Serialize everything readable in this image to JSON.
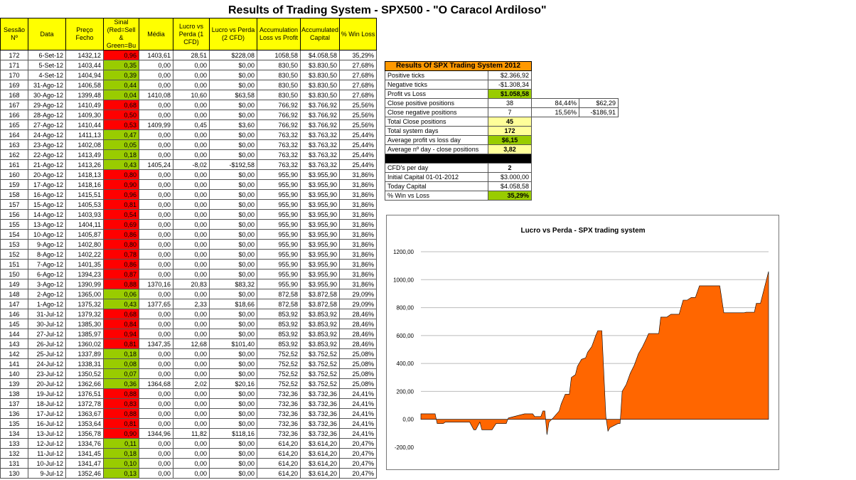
{
  "page": {
    "title": "Results of Trading System -  SPX500 - \"O Caracol Ardiloso\""
  },
  "table": {
    "headers": [
      "Sessão Nº",
      "Data",
      "Preço Fecho",
      "Sinal (Red=Sell & Green=Bu",
      "Média",
      "Lucro vs Perda (1 CFD)",
      "Lucro vs Perda (2 CFD)",
      "Accumulation Loss vs Profit",
      "Accumulated Capital",
      "% Win Loss"
    ],
    "rows": [
      {
        "n": "172",
        "date": "6-Set-12",
        "price": "1432,12",
        "signal": "0,96",
        "sc": "red",
        "media": "1403,61",
        "lp1": "28,51",
        "lp2": "$228,08",
        "acc": "1058,58",
        "cap": "$4.058,58",
        "win": "35,29%"
      },
      {
        "n": "171",
        "date": "5-Set-12",
        "price": "1403,44",
        "signal": "0,35",
        "sc": "green",
        "media": "0,00",
        "lp1": "0,00",
        "lp2": "$0,00",
        "acc": "830,50",
        "cap": "$3.830,50",
        "win": "27,68%"
      },
      {
        "n": "170",
        "date": "4-Set-12",
        "price": "1404,94",
        "signal": "0,39",
        "sc": "green",
        "media": "0,00",
        "lp1": "0,00",
        "lp2": "$0,00",
        "acc": "830,50",
        "cap": "$3.830,50",
        "win": "27,68%"
      },
      {
        "n": "169",
        "date": "31-Ago-12",
        "price": "1406,58",
        "signal": "0,44",
        "sc": "green",
        "media": "0,00",
        "lp1": "0,00",
        "lp2": "$0,00",
        "acc": "830,50",
        "cap": "$3.830,50",
        "win": "27,68%"
      },
      {
        "n": "168",
        "date": "30-Ago-12",
        "price": "1399,48",
        "signal": "0,04",
        "sc": "green",
        "media": "1410,08",
        "lp1": "10,60",
        "lp2": "$63,58",
        "acc": "830,50",
        "cap": "$3.830,50",
        "win": "27,68%"
      },
      {
        "n": "167",
        "date": "29-Ago-12",
        "price": "1410,49",
        "signal": "0,68",
        "sc": "red",
        "media": "0,00",
        "lp1": "0,00",
        "lp2": "$0,00",
        "acc": "766,92",
        "cap": "$3.766,92",
        "win": "25,56%"
      },
      {
        "n": "166",
        "date": "28-Ago-12",
        "price": "1409,30",
        "signal": "0,50",
        "sc": "red",
        "media": "0,00",
        "lp1": "0,00",
        "lp2": "$0,00",
        "acc": "766,92",
        "cap": "$3.766,92",
        "win": "25,56%"
      },
      {
        "n": "165",
        "date": "27-Ago-12",
        "price": "1410,44",
        "signal": "0,53",
        "sc": "red",
        "media": "1409,99",
        "lp1": "0,45",
        "lp2": "$3,60",
        "acc": "766,92",
        "cap": "$3.766,92",
        "win": "25,56%"
      },
      {
        "n": "164",
        "date": "24-Ago-12",
        "price": "1411,13",
        "signal": "0,47",
        "sc": "green",
        "media": "0,00",
        "lp1": "0,00",
        "lp2": "$0,00",
        "acc": "763,32",
        "cap": "$3.763,32",
        "win": "25,44%"
      },
      {
        "n": "163",
        "date": "23-Ago-12",
        "price": "1402,08",
        "signal": "0,05",
        "sc": "green",
        "media": "0,00",
        "lp1": "0,00",
        "lp2": "$0,00",
        "acc": "763,32",
        "cap": "$3.763,32",
        "win": "25,44%"
      },
      {
        "n": "162",
        "date": "22-Ago-12",
        "price": "1413,49",
        "signal": "0,18",
        "sc": "green",
        "media": "0,00",
        "lp1": "0,00",
        "lp2": "$0,00",
        "acc": "763,32",
        "cap": "$3.763,32",
        "win": "25,44%"
      },
      {
        "n": "161",
        "date": "21-Ago-12",
        "price": "1413,26",
        "signal": "0,43",
        "sc": "green",
        "media": "1405,24",
        "lp1": "-8,02",
        "lp2": "-$192,58",
        "acc": "763,32",
        "cap": "$3.763,32",
        "win": "25,44%"
      },
      {
        "n": "160",
        "date": "20-Ago-12",
        "price": "1418,13",
        "signal": "0,80",
        "sc": "red",
        "media": "0,00",
        "lp1": "0,00",
        "lp2": "$0,00",
        "acc": "955,90",
        "cap": "$3.955,90",
        "win": "31,86%"
      },
      {
        "n": "159",
        "date": "17-Ago-12",
        "price": "1418,16",
        "signal": "0,90",
        "sc": "red",
        "media": "0,00",
        "lp1": "0,00",
        "lp2": "$0,00",
        "acc": "955,90",
        "cap": "$3.955,90",
        "win": "31,86%"
      },
      {
        "n": "158",
        "date": "16-Ago-12",
        "price": "1415,51",
        "signal": "0,96",
        "sc": "red",
        "media": "0,00",
        "lp1": "0,00",
        "lp2": "$0,00",
        "acc": "955,90",
        "cap": "$3.955,90",
        "win": "31,86%"
      },
      {
        "n": "157",
        "date": "15-Ago-12",
        "price": "1405,53",
        "signal": "0,81",
        "sc": "red",
        "media": "0,00",
        "lp1": "0,00",
        "lp2": "$0,00",
        "acc": "955,90",
        "cap": "$3.955,90",
        "win": "31,86%"
      },
      {
        "n": "156",
        "date": "14-Ago-12",
        "price": "1403,93",
        "signal": "0,54",
        "sc": "red",
        "media": "0,00",
        "lp1": "0,00",
        "lp2": "$0,00",
        "acc": "955,90",
        "cap": "$3.955,90",
        "win": "31,86%"
      },
      {
        "n": "155",
        "date": "13-Ago-12",
        "price": "1404,11",
        "signal": "0,69",
        "sc": "red",
        "media": "0,00",
        "lp1": "0,00",
        "lp2": "$0,00",
        "acc": "955,90",
        "cap": "$3.955,90",
        "win": "31,86%"
      },
      {
        "n": "154",
        "date": "10-Ago-12",
        "price": "1405,87",
        "signal": "0,86",
        "sc": "red",
        "media": "0,00",
        "lp1": "0,00",
        "lp2": "$0,00",
        "acc": "955,90",
        "cap": "$3.955,90",
        "win": "31,86%"
      },
      {
        "n": "153",
        "date": "9-Ago-12",
        "price": "1402,80",
        "signal": "0,80",
        "sc": "red",
        "media": "0,00",
        "lp1": "0,00",
        "lp2": "$0,00",
        "acc": "955,90",
        "cap": "$3.955,90",
        "win": "31,86%"
      },
      {
        "n": "152",
        "date": "8-Ago-12",
        "price": "1402,22",
        "signal": "0,78",
        "sc": "red",
        "media": "0,00",
        "lp1": "0,00",
        "lp2": "$0,00",
        "acc": "955,90",
        "cap": "$3.955,90",
        "win": "31,86%"
      },
      {
        "n": "151",
        "date": "7-Ago-12",
        "price": "1401,35",
        "signal": "0,86",
        "sc": "red",
        "media": "0,00",
        "lp1": "0,00",
        "lp2": "$0,00",
        "acc": "955,90",
        "cap": "$3.955,90",
        "win": "31,86%"
      },
      {
        "n": "150",
        "date": "6-Ago-12",
        "price": "1394,23",
        "signal": "0,87",
        "sc": "red",
        "media": "0,00",
        "lp1": "0,00",
        "lp2": "$0,00",
        "acc": "955,90",
        "cap": "$3.955,90",
        "win": "31,86%"
      },
      {
        "n": "149",
        "date": "3-Ago-12",
        "price": "1390,99",
        "signal": "0,88",
        "sc": "red",
        "media": "1370,16",
        "lp1": "20,83",
        "lp2": "$83,32",
        "acc": "955,90",
        "cap": "$3.955,90",
        "win": "31,86%"
      },
      {
        "n": "148",
        "date": "2-Ago-12",
        "price": "1365,00",
        "signal": "0,06",
        "sc": "green",
        "media": "0,00",
        "lp1": "0,00",
        "lp2": "$0,00",
        "acc": "872,58",
        "cap": "$3.872,58",
        "win": "29,09%"
      },
      {
        "n": "147",
        "date": "1-Ago-12",
        "price": "1375,32",
        "signal": "0,43",
        "sc": "green",
        "media": "1377,65",
        "lp1": "2,33",
        "lp2": "$18,66",
        "acc": "872,58",
        "cap": "$3.872,58",
        "win": "29,09%"
      },
      {
        "n": "146",
        "date": "31-Jul-12",
        "price": "1379,32",
        "signal": "0,68",
        "sc": "red",
        "media": "0,00",
        "lp1": "0,00",
        "lp2": "$0,00",
        "acc": "853,92",
        "cap": "$3.853,92",
        "win": "28,46%"
      },
      {
        "n": "145",
        "date": "30-Jul-12",
        "price": "1385,30",
        "signal": "0,84",
        "sc": "red",
        "media": "0,00",
        "lp1": "0,00",
        "lp2": "$0,00",
        "acc": "853,92",
        "cap": "$3.853,92",
        "win": "28,46%"
      },
      {
        "n": "144",
        "date": "27-Jul-12",
        "price": "1385,97",
        "signal": "0,94",
        "sc": "red",
        "media": "0,00",
        "lp1": "0,00",
        "lp2": "$0,00",
        "acc": "853,92",
        "cap": "$3.853,92",
        "win": "28,46%"
      },
      {
        "n": "143",
        "date": "26-Jul-12",
        "price": "1360,02",
        "signal": "0,81",
        "sc": "red",
        "media": "1347,35",
        "lp1": "12,68",
        "lp2": "$101,40",
        "acc": "853,92",
        "cap": "$3.853,92",
        "win": "28,46%"
      },
      {
        "n": "142",
        "date": "25-Jul-12",
        "price": "1337,89",
        "signal": "0,18",
        "sc": "green",
        "media": "0,00",
        "lp1": "0,00",
        "lp2": "$0,00",
        "acc": "752,52",
        "cap": "$3.752,52",
        "win": "25,08%"
      },
      {
        "n": "141",
        "date": "24-Jul-12",
        "price": "1338,31",
        "signal": "0,08",
        "sc": "green",
        "media": "0,00",
        "lp1": "0,00",
        "lp2": "$0,00",
        "acc": "752,52",
        "cap": "$3.752,52",
        "win": "25,08%"
      },
      {
        "n": "140",
        "date": "23-Jul-12",
        "price": "1350,52",
        "signal": "0,07",
        "sc": "green",
        "media": "0,00",
        "lp1": "0,00",
        "lp2": "$0,00",
        "acc": "752,52",
        "cap": "$3.752,52",
        "win": "25,08%"
      },
      {
        "n": "139",
        "date": "20-Jul-12",
        "price": "1362,66",
        "signal": "0,36",
        "sc": "green",
        "media": "1364,68",
        "lp1": "2,02",
        "lp2": "$20,16",
        "acc": "752,52",
        "cap": "$3.752,52",
        "win": "25,08%"
      },
      {
        "n": "138",
        "date": "19-Jul-12",
        "price": "1376,51",
        "signal": "0,88",
        "sc": "red",
        "media": "0,00",
        "lp1": "0,00",
        "lp2": "$0,00",
        "acc": "732,36",
        "cap": "$3.732,36",
        "win": "24,41%"
      },
      {
        "n": "137",
        "date": "18-Jul-12",
        "price": "1372,78",
        "signal": "0,83",
        "sc": "red",
        "media": "0,00",
        "lp1": "0,00",
        "lp2": "$0,00",
        "acc": "732,36",
        "cap": "$3.732,36",
        "win": "24,41%"
      },
      {
        "n": "136",
        "date": "17-Jul-12",
        "price": "1363,67",
        "signal": "0,88",
        "sc": "red",
        "media": "0,00",
        "lp1": "0,00",
        "lp2": "$0,00",
        "acc": "732,36",
        "cap": "$3.732,36",
        "win": "24,41%"
      },
      {
        "n": "135",
        "date": "16-Jul-12",
        "price": "1353,64",
        "signal": "0,81",
        "sc": "red",
        "media": "0,00",
        "lp1": "0,00",
        "lp2": "$0,00",
        "acc": "732,36",
        "cap": "$3.732,36",
        "win": "24,41%"
      },
      {
        "n": "134",
        "date": "13-Jul-12",
        "price": "1356,78",
        "signal": "0,90",
        "sc": "red",
        "media": "1344,96",
        "lp1": "11,82",
        "lp2": "$118,16",
        "acc": "732,36",
        "cap": "$3.732,36",
        "win": "24,41%"
      },
      {
        "n": "133",
        "date": "12-Jul-12",
        "price": "1334,76",
        "signal": "0,11",
        "sc": "green",
        "media": "0,00",
        "lp1": "0,00",
        "lp2": "$0,00",
        "acc": "614,20",
        "cap": "$3.614,20",
        "win": "20,47%"
      },
      {
        "n": "132",
        "date": "11-Jul-12",
        "price": "1341,45",
        "signal": "0,18",
        "sc": "green",
        "media": "0,00",
        "lp1": "0,00",
        "lp2": "$0,00",
        "acc": "614,20",
        "cap": "$3.614,20",
        "win": "20,47%"
      },
      {
        "n": "131",
        "date": "10-Jul-12",
        "price": "1341,47",
        "signal": "0,10",
        "sc": "green",
        "media": "0,00",
        "lp1": "0,00",
        "lp2": "$0,00",
        "acc": "614,20",
        "cap": "$3.614,20",
        "win": "20,47%"
      },
      {
        "n": "130",
        "date": "9-Jul-12",
        "price": "1352,46",
        "signal": "0,13",
        "sc": "green",
        "media": "0,00",
        "lp1": "0,00",
        "lp2": "$0,00",
        "acc": "614,20",
        "cap": "$3.614,20",
        "win": "20,47%"
      }
    ]
  },
  "summary": {
    "title": "Results Of SPX Trading System 2012",
    "positive_ticks_label": "Positive ticks",
    "positive_ticks": "$2.366,92",
    "negative_ticks_label": "Negative ticks",
    "negative_ticks": "-$1.308,34",
    "profit_loss_label": "Profit vs Loss",
    "profit_loss": "$1.058,58",
    "close_pos_label": "Close positive positions",
    "close_pos_count": "38",
    "close_pos_pct": "84,44%",
    "close_pos_value": "$62,29",
    "close_neg_label": "Close negative positions",
    "close_neg_count": "7",
    "close_neg_pct": "15,56%",
    "close_neg_value": "-$186,91",
    "total_close_label": "Total Close positions",
    "total_close": "45",
    "total_days_label": "Total system days",
    "total_days": "172",
    "avg_profit_label": "Average profit vs loss day",
    "avg_profit": "$6,15",
    "avg_day_label": "Average nº day - close positions",
    "avg_day": "3,82",
    "cfd_label": "CFD's per day",
    "cfd": "2",
    "initial_label": "Initial Capital 01-01-2012",
    "initial": "$3.000,00",
    "today_label": "Today Capital",
    "today": "$4.058,58",
    "win_label": "% Win vs Loss",
    "win": "35,29%"
  },
  "chart_data": {
    "type": "area",
    "title": "Lucro vs Perda - SPX trading system",
    "ylim": [
      -200,
      1200
    ],
    "yticks": [
      "1200,00",
      "1000,00",
      "800,00",
      "600,00",
      "400,00",
      "200,00",
      "0,00",
      "-200,00"
    ],
    "ytick_values": [
      1200,
      1000,
      800,
      600,
      400,
      200,
      0,
      -200
    ],
    "color": "#ff6600",
    "x": [
      1,
      8,
      9,
      12,
      13,
      25,
      27,
      28,
      30,
      31,
      36,
      38,
      43,
      44,
      52,
      56,
      57,
      60,
      61,
      62,
      63,
      64,
      66,
      69,
      70,
      72,
      74,
      75,
      77,
      78,
      80,
      82,
      83,
      85,
      86,
      87,
      88,
      90,
      92,
      93,
      94,
      98,
      99,
      100,
      102,
      104,
      106,
      108,
      110,
      112,
      113,
      118,
      119,
      122,
      124,
      128,
      130,
      132,
      134,
      136,
      138,
      140,
      141,
      144,
      147,
      148,
      150,
      153,
      154,
      160,
      161,
      165,
      166,
      167,
      168,
      172
    ],
    "values": [
      40,
      40,
      -30,
      -30,
      -20,
      -20,
      -75,
      -75,
      -20,
      -75,
      -75,
      -30,
      -30,
      10,
      40,
      40,
      20,
      20,
      60,
      60,
      -110,
      -20,
      10,
      60,
      110,
      180,
      180,
      300,
      320,
      380,
      430,
      440,
      480,
      520,
      560,
      600,
      635,
      635,
      20,
      -85,
      -60,
      -30,
      -30,
      200,
      250,
      330,
      390,
      470,
      520,
      580,
      614.2,
      614.2,
      732.36,
      732.36,
      752.52,
      752.52,
      853.92,
      853.92,
      872.58,
      872.58,
      955.9,
      955.9,
      955.9,
      955.9,
      955.9,
      955.9,
      763.32,
      763.32,
      763.32,
      763.32,
      766.92,
      766.92,
      830.5,
      830.5,
      830.5,
      1058.58
    ]
  }
}
